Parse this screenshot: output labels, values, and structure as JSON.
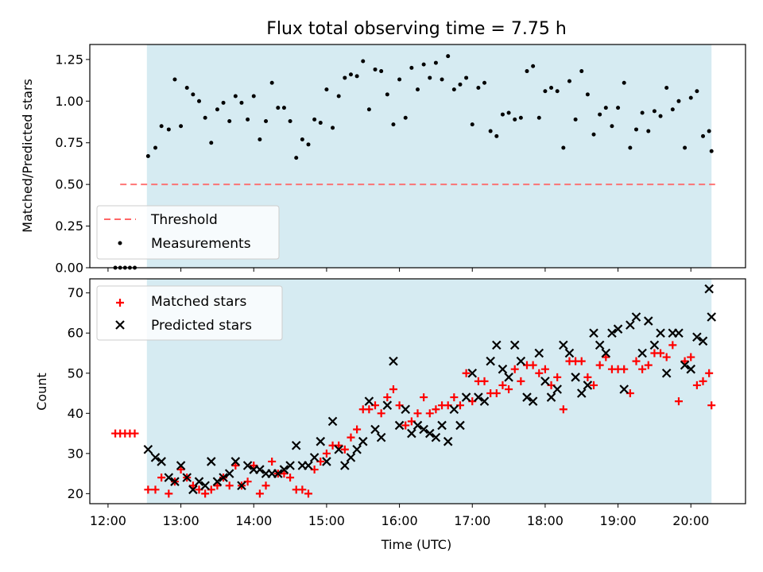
{
  "chart_data": [
    {
      "type": "scatter",
      "title": "Flux total observing time = 7.75 h",
      "xlabel": "",
      "ylabel": "Matched/Predicted stars",
      "ylim": [
        0,
        1.34
      ],
      "xlim": [
        "11:45",
        "20:45"
      ],
      "yticks": [
        "0.00",
        "0.25",
        "0.50",
        "0.75",
        "1.00",
        "1.25"
      ],
      "observing_window": [
        "12:32",
        "20:17"
      ],
      "threshold": 0.5,
      "legend": {
        "position": "lower-left",
        "entries": [
          "Threshold",
          "Measurements"
        ]
      },
      "series": [
        {
          "name": "Measurements",
          "x": [
            "12:06",
            "12:10",
            "12:14",
            "12:18",
            "12:22",
            "12:33",
            "12:39",
            "12:44",
            "12:50",
            "12:55",
            "13:00",
            "13:05",
            "13:10",
            "13:15",
            "13:20",
            "13:25",
            "13:30",
            "13:35",
            "13:40",
            "13:45",
            "13:50",
            "13:55",
            "14:00",
            "14:05",
            "14:10",
            "14:15",
            "14:20",
            "14:25",
            "14:30",
            "14:35",
            "14:40",
            "14:45",
            "14:50",
            "14:55",
            "15:00",
            "15:05",
            "15:10",
            "15:15",
            "15:20",
            "15:25",
            "15:30",
            "15:35",
            "15:40",
            "15:45",
            "15:50",
            "15:55",
            "16:00",
            "16:05",
            "16:10",
            "16:15",
            "16:20",
            "16:25",
            "16:30",
            "16:35",
            "16:40",
            "16:45",
            "16:50",
            "16:55",
            "17:00",
            "17:05",
            "17:10",
            "17:15",
            "17:20",
            "17:25",
            "17:30",
            "17:35",
            "17:40",
            "17:45",
            "17:50",
            "17:55",
            "18:00",
            "18:05",
            "18:10",
            "18:15",
            "18:20",
            "18:25",
            "18:30",
            "18:35",
            "18:40",
            "18:45",
            "18:50",
            "18:55",
            "19:00",
            "19:05",
            "19:10",
            "19:15",
            "19:20",
            "19:25",
            "19:30",
            "19:35",
            "19:40",
            "19:45",
            "19:50",
            "19:55",
            "20:00",
            "20:05",
            "20:10",
            "20:15",
            "20:17"
          ],
          "y": [
            0.0,
            0.0,
            0.0,
            0.0,
            0.0,
            0.67,
            0.72,
            0.85,
            0.83,
            1.13,
            0.85,
            1.08,
            1.04,
            1.0,
            0.9,
            0.75,
            0.95,
            0.99,
            0.88,
            1.03,
            0.99,
            0.89,
            1.03,
            0.77,
            0.88,
            1.11,
            0.96,
            0.96,
            0.88,
            0.66,
            0.77,
            0.74,
            0.89,
            0.87,
            1.07,
            0.84,
            1.03,
            1.14,
            1.16,
            1.15,
            1.24,
            0.95,
            1.19,
            1.18,
            1.04,
            0.86,
            1.13,
            0.9,
            1.2,
            1.07,
            1.22,
            1.14,
            1.23,
            1.13,
            1.27,
            1.07,
            1.1,
            1.14,
            0.86,
            1.08,
            1.11,
            0.82,
            0.79,
            0.92,
            0.93,
            0.89,
            0.9,
            1.18,
            1.21,
            0.9,
            1.06,
            1.08,
            1.06,
            0.72,
            1.12,
            0.89,
            1.18,
            1.04,
            0.8,
            0.92,
            0.96,
            0.85,
            0.96,
            1.11,
            0.72,
            0.83,
            0.93,
            0.82,
            0.94,
            0.91,
            1.08,
            0.95,
            1.0,
            0.72,
            1.02,
            1.06,
            0.79,
            0.82,
            0.7
          ]
        },
        {
          "name": "Threshold",
          "x": [
            "12:10",
            "20:20"
          ],
          "y": [
            0.5,
            0.5
          ]
        }
      ]
    },
    {
      "type": "scatter",
      "title": "",
      "xlabel": "Time (UTC)",
      "ylabel": "Count",
      "ylim": [
        17.5,
        73.5
      ],
      "xlim": [
        "11:45",
        "20:45"
      ],
      "xticks": [
        "12:00",
        "13:00",
        "14:00",
        "15:00",
        "16:00",
        "17:00",
        "18:00",
        "19:00",
        "20:00"
      ],
      "yticks": [
        "20",
        "30",
        "40",
        "50",
        "60",
        "70"
      ],
      "observing_window": [
        "12:32",
        "20:17"
      ],
      "legend": {
        "position": "upper-left",
        "entries": [
          "Matched stars",
          "Predicted stars"
        ]
      },
      "series": [
        {
          "name": "Matched stars",
          "x": [
            "12:06",
            "12:10",
            "12:14",
            "12:18",
            "12:22",
            "12:33",
            "12:39",
            "12:44",
            "12:50",
            "12:55",
            "13:00",
            "13:05",
            "13:10",
            "13:15",
            "13:20",
            "13:25",
            "13:30",
            "13:35",
            "13:40",
            "13:45",
            "13:50",
            "13:55",
            "14:00",
            "14:05",
            "14:10",
            "14:15",
            "14:20",
            "14:25",
            "14:30",
            "14:35",
            "14:40",
            "14:45",
            "14:50",
            "14:55",
            "15:00",
            "15:05",
            "15:10",
            "15:15",
            "15:20",
            "15:25",
            "15:30",
            "15:35",
            "15:40",
            "15:45",
            "15:50",
            "15:55",
            "16:00",
            "16:05",
            "16:10",
            "16:15",
            "16:20",
            "16:25",
            "16:30",
            "16:35",
            "16:40",
            "16:45",
            "16:50",
            "16:55",
            "17:00",
            "17:05",
            "17:10",
            "17:15",
            "17:20",
            "17:25",
            "17:30",
            "17:35",
            "17:40",
            "17:45",
            "17:50",
            "17:55",
            "18:00",
            "18:05",
            "18:10",
            "18:15",
            "18:20",
            "18:25",
            "18:30",
            "18:35",
            "18:40",
            "18:45",
            "18:50",
            "18:55",
            "19:00",
            "19:05",
            "19:10",
            "19:15",
            "19:20",
            "19:25",
            "19:30",
            "19:35",
            "19:40",
            "19:45",
            "19:50",
            "19:55",
            "20:00",
            "20:05",
            "20:10",
            "20:15",
            "20:17"
          ],
          "y": [
            35,
            35,
            35,
            35,
            35,
            21,
            21,
            24,
            20,
            23,
            26,
            24,
            22,
            21,
            20,
            21,
            22,
            24,
            22,
            27,
            22,
            23,
            27,
            20,
            22,
            28,
            25,
            25,
            24,
            21,
            21,
            20,
            26,
            28,
            30,
            32,
            32,
            31,
            34,
            36,
            41,
            41,
            42,
            40,
            44,
            46,
            42,
            37,
            38,
            40,
            44,
            40,
            41,
            42,
            42,
            44,
            42,
            50,
            43,
            48,
            48,
            45,
            45,
            47,
            46,
            51,
            48,
            52,
            52,
            50,
            51,
            47,
            49,
            41,
            53,
            53,
            53,
            49,
            47,
            52,
            54,
            51,
            51,
            51,
            45,
            53,
            51,
            52,
            55,
            55,
            54,
            57,
            43,
            53,
            54,
            47,
            48,
            50,
            42
          ]
        },
        {
          "name": "Predicted stars",
          "x": [
            "12:33",
            "12:39",
            "12:44",
            "12:50",
            "12:55",
            "13:00",
            "13:05",
            "13:10",
            "13:15",
            "13:20",
            "13:25",
            "13:30",
            "13:35",
            "13:40",
            "13:45",
            "13:50",
            "13:55",
            "14:00",
            "14:05",
            "14:10",
            "14:15",
            "14:20",
            "14:25",
            "14:30",
            "14:35",
            "14:40",
            "14:45",
            "14:50",
            "14:55",
            "15:00",
            "15:05",
            "15:10",
            "15:15",
            "15:20",
            "15:25",
            "15:30",
            "15:35",
            "15:40",
            "15:45",
            "15:50",
            "15:55",
            "16:00",
            "16:05",
            "16:10",
            "16:15",
            "16:20",
            "16:25",
            "16:30",
            "16:35",
            "16:40",
            "16:45",
            "16:50",
            "16:55",
            "17:00",
            "17:05",
            "17:10",
            "17:15",
            "17:20",
            "17:25",
            "17:30",
            "17:35",
            "17:40",
            "17:45",
            "17:50",
            "17:55",
            "18:00",
            "18:05",
            "18:10",
            "18:15",
            "18:20",
            "18:25",
            "18:30",
            "18:35",
            "18:40",
            "18:45",
            "18:50",
            "18:55",
            "19:00",
            "19:05",
            "19:10",
            "19:15",
            "19:20",
            "19:25",
            "19:30",
            "19:35",
            "19:40",
            "19:45",
            "19:50",
            "19:55",
            "20:00",
            "20:05",
            "20:10",
            "20:15",
            "20:17"
          ],
          "y": [
            31,
            29,
            28,
            24,
            23,
            27,
            24,
            21,
            23,
            22,
            28,
            23,
            24,
            25,
            28,
            22,
            27,
            26,
            26,
            25,
            25,
            25,
            26,
            27,
            32,
            27,
            27,
            29,
            33,
            28,
            38,
            31,
            27,
            29,
            31,
            33,
            43,
            36,
            34,
            42,
            53,
            37,
            41,
            35,
            37,
            36,
            35,
            34,
            37,
            33,
            41,
            37,
            44,
            50,
            44,
            43,
            53,
            57,
            51,
            49,
            57,
            53,
            44,
            43,
            55,
            48,
            44,
            46,
            57,
            55,
            49,
            45,
            47,
            60,
            57,
            55,
            60,
            61,
            46,
            62,
            64,
            55,
            63,
            57,
            60,
            50,
            60,
            60,
            52,
            51,
            59,
            58,
            71,
            64
          ]
        }
      ]
    }
  ]
}
